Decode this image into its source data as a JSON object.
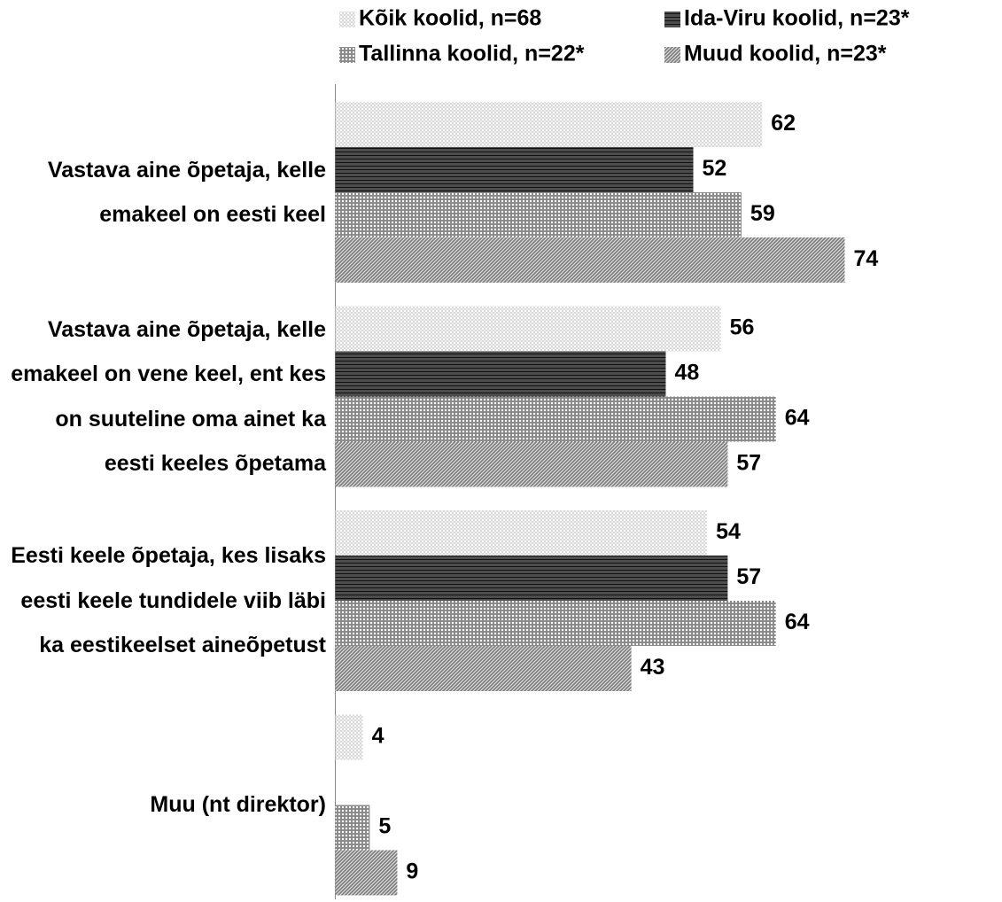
{
  "chart_data": {
    "type": "bar",
    "orientation": "horizontal",
    "categories": [
      "Vastava aine õpetaja, kelle emakeel on eesti keel",
      "Vastava aine õpetaja, kelle emakeel on vene keel, ent kes on suuteline oma ainet ka eesti keeles õpetama",
      "Eesti keele õpetaja, kes lisaks eesti keele tundidele viib läbi ka eestikeelset aineõpetust",
      "Muu (nt direktor)"
    ],
    "series": [
      {
        "name": "Kõik koolid, n=68",
        "color": "#d9d9d9",
        "values": [
          62,
          56,
          54,
          4
        ]
      },
      {
        "name": "Ida-Viru koolid, n=23*",
        "color": "#4d4d4d",
        "values": [
          52,
          48,
          57,
          null
        ]
      },
      {
        "name": "Tallinna koolid, n=22*",
        "color": "#8c8c8c",
        "values": [
          59,
          64,
          64,
          5
        ]
      },
      {
        "name": "Muud koolid, n=23*",
        "color": "#7a7a7a",
        "values": [
          74,
          57,
          43,
          9
        ]
      }
    ]
  }
}
